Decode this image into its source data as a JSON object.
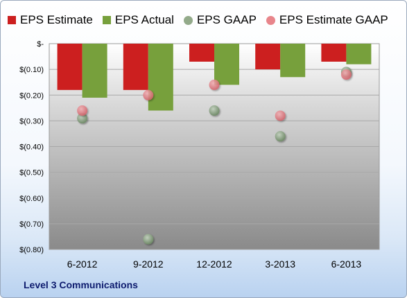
{
  "chart_data": {
    "type": "bar",
    "categories": [
      "6-2012",
      "9-2012",
      "12-2012",
      "3-2013",
      "6-2013"
    ],
    "series": [
      {
        "name": "EPS Estimate",
        "kind": "bar",
        "color": "#cc1f1f",
        "values": [
          -0.18,
          -0.18,
          -0.07,
          -0.1,
          -0.07
        ]
      },
      {
        "name": "EPS Actual",
        "kind": "bar",
        "color": "#77a03c",
        "values": [
          -0.21,
          -0.26,
          -0.16,
          -0.13,
          -0.08
        ]
      },
      {
        "name": "EPS GAAP",
        "kind": "point",
        "color": "#93aa8a",
        "values": [
          -0.29,
          -0.76,
          -0.26,
          -0.36,
          -0.11
        ]
      },
      {
        "name": "EPS Estimate GAAP",
        "kind": "point",
        "color": "#e8858b",
        "values": [
          -0.26,
          -0.2,
          -0.16,
          -0.28,
          -0.12
        ]
      }
    ],
    "y_ticks": [
      0,
      -0.1,
      -0.2,
      -0.3,
      -0.4,
      -0.5,
      -0.6,
      -0.7,
      -0.8
    ],
    "y_tick_labels": [
      "$-",
      "$(0.10)",
      "$(0.20)",
      "$(0.30)",
      "$(0.40)",
      "$(0.50)",
      "$(0.60)",
      "$(0.70)",
      "$(0.80)"
    ],
    "ylim": [
      -0.8,
      0
    ],
    "grid": true,
    "legend_position": "top"
  },
  "footer": {
    "company": "Level 3 Communications"
  }
}
